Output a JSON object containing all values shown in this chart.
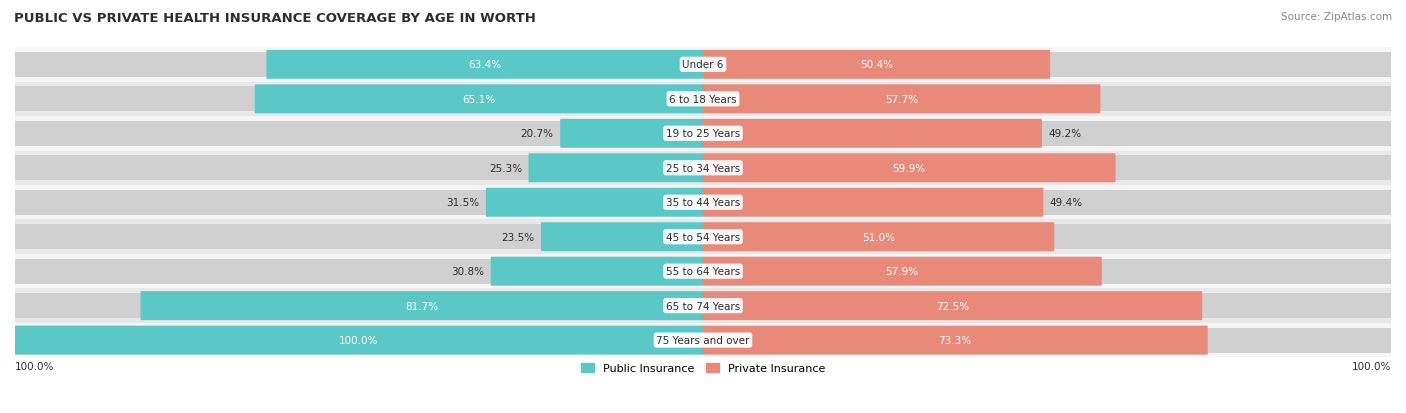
{
  "title": "PUBLIC VS PRIVATE HEALTH INSURANCE COVERAGE BY AGE IN WORTH",
  "source": "Source: ZipAtlas.com",
  "categories": [
    "Under 6",
    "6 to 18 Years",
    "19 to 25 Years",
    "25 to 34 Years",
    "35 to 44 Years",
    "45 to 54 Years",
    "55 to 64 Years",
    "65 to 74 Years",
    "75 Years and over"
  ],
  "public_values": [
    63.4,
    65.1,
    20.7,
    25.3,
    31.5,
    23.5,
    30.8,
    81.7,
    100.0
  ],
  "private_values": [
    50.4,
    57.7,
    49.2,
    59.9,
    49.4,
    51.0,
    57.9,
    72.5,
    73.3
  ],
  "public_color": "#5bc8c8",
  "private_color": "#e8897a",
  "bar_bg_color": "#d0d0d0",
  "row_bg_colors": [
    "#f5f5f5",
    "#e8e8e8"
  ],
  "title_color": "#2d2d2d",
  "label_color": "#2d2d2d",
  "value_color_dark": "#2d2d2d",
  "value_color_light": "#ffffff",
  "max_value": 100.0,
  "figsize": [
    14.06,
    4.14
  ],
  "dpi": 100
}
